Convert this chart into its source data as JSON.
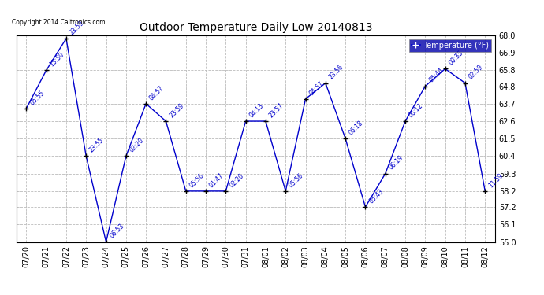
{
  "title": "Outdoor Temperature Daily Low 20140813",
  "legend_label": "Temperature (°F)",
  "copyright": "Copyright 2014 Caltronics.com",
  "background_color": "#ffffff",
  "line_color": "#0000cc",
  "marker_color": "#000000",
  "ylim": [
    55.0,
    68.0
  ],
  "yticks": [
    55.0,
    56.1,
    57.2,
    58.2,
    59.3,
    60.4,
    61.5,
    62.6,
    63.7,
    64.8,
    65.8,
    66.9,
    68.0
  ],
  "dates": [
    "07/20",
    "07/21",
    "07/22",
    "07/23",
    "07/24",
    "07/25",
    "07/26",
    "07/27",
    "07/28",
    "07/29",
    "07/30",
    "07/31",
    "08/01",
    "08/02",
    "08/03",
    "08/04",
    "08/05",
    "08/06",
    "08/07",
    "08/08",
    "08/09",
    "08/10",
    "08/11",
    "08/12"
  ],
  "values": [
    63.4,
    65.8,
    67.8,
    60.4,
    55.0,
    60.4,
    63.7,
    62.6,
    58.2,
    58.2,
    58.2,
    62.6,
    62.6,
    58.2,
    64.0,
    65.0,
    61.5,
    57.2,
    59.3,
    62.6,
    64.8,
    65.9,
    65.0,
    58.2
  ],
  "annotations": [
    "05:55",
    "15:50",
    "23:59",
    "23:55",
    "06:53",
    "02:20",
    "04:57",
    "23:59",
    "05:56",
    "01:47",
    "02:20",
    "04:13",
    "23:57",
    "05:56",
    "04:57",
    "23:56",
    "06:18",
    "05:43",
    "06:19",
    "06:12",
    "05:44",
    "00:35",
    "02:59",
    "11:59"
  ]
}
